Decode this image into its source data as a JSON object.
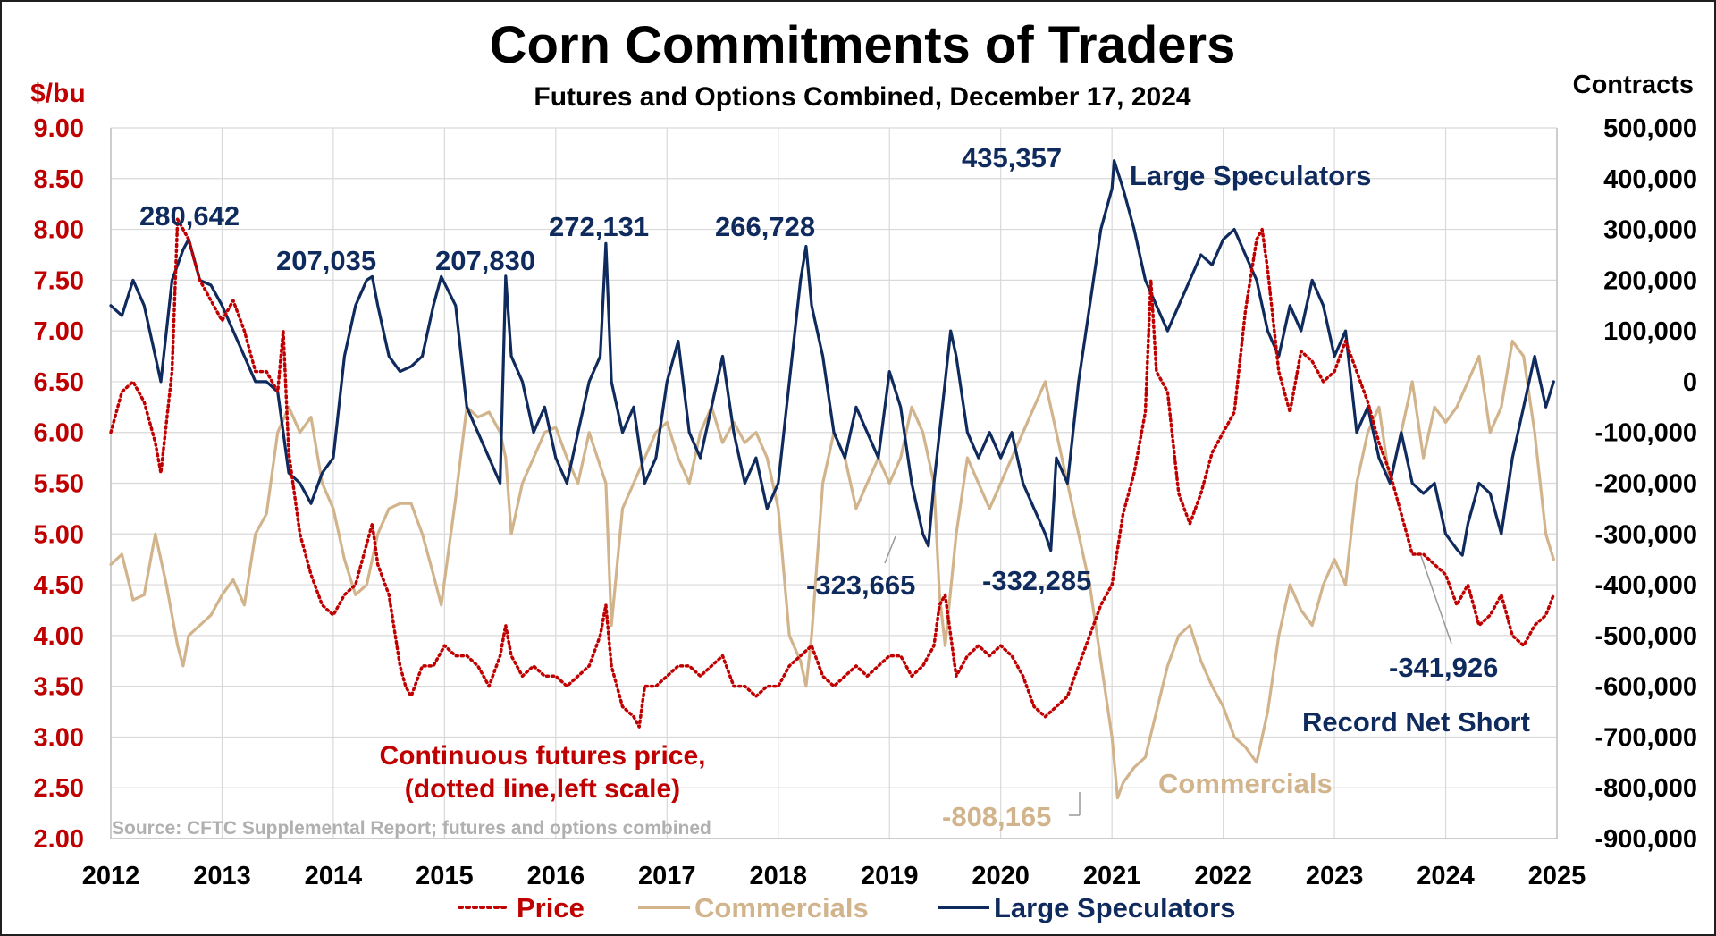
{
  "chart_data": {
    "type": "line",
    "title": "Corn Commitments of Traders",
    "subtitle": "Futures and Options Combined, December 17, 2024",
    "y_left_unit": "$/bu",
    "y_right_unit": "Contracts",
    "ylim_left": [
      2.0,
      9.0
    ],
    "ylim_right": [
      -900000,
      500000
    ],
    "xlim": [
      2012,
      2025
    ],
    "y_left_ticks": [
      "9.00",
      "8.50",
      "8.00",
      "7.50",
      "7.00",
      "6.50",
      "6.00",
      "5.50",
      "5.00",
      "4.50",
      "4.00",
      "3.50",
      "3.00",
      "2.50",
      "2.00"
    ],
    "y_right_ticks": [
      "500,000",
      "400,000",
      "300,000",
      "200,000",
      "100,000",
      "0",
      "-100,000",
      "-200,000",
      "-300,000",
      "-400,000",
      "-500,000",
      "-600,000",
      "-700,000",
      "-800,000",
      "-900,000"
    ],
    "x_ticks": [
      "2012",
      "2013",
      "2014",
      "2015",
      "2016",
      "2017",
      "2018",
      "2019",
      "2020",
      "2021",
      "2022",
      "2023",
      "2024",
      "2025"
    ],
    "grid": true,
    "legend_position": "bottom",
    "colors": {
      "price": "#c00000",
      "commercials": "#d2b48c",
      "speculators": "#0f2a5c"
    },
    "series": [
      {
        "name": "Price",
        "axis": "left",
        "style": "dotted",
        "x": [
          2012.0,
          2012.1,
          2012.2,
          2012.3,
          2012.4,
          2012.45,
          2012.55,
          2012.6,
          2012.7,
          2012.8,
          2012.9,
          2013.0,
          2013.1,
          2013.2,
          2013.3,
          2013.4,
          2013.5,
          2013.55,
          2013.6,
          2013.7,
          2013.8,
          2013.9,
          2014.0,
          2014.1,
          2014.2,
          2014.3,
          2014.35,
          2014.4,
          2014.5,
          2014.6,
          2014.65,
          2014.7,
          2014.8,
          2014.9,
          2015.0,
          2015.1,
          2015.2,
          2015.3,
          2015.4,
          2015.5,
          2015.55,
          2015.6,
          2015.7,
          2015.8,
          2015.9,
          2016.0,
          2016.1,
          2016.2,
          2016.3,
          2016.4,
          2016.45,
          2016.5,
          2016.6,
          2016.7,
          2016.75,
          2016.8,
          2016.9,
          2017.0,
          2017.1,
          2017.2,
          2017.3,
          2017.4,
          2017.5,
          2017.6,
          2017.7,
          2017.8,
          2017.9,
          2018.0,
          2018.1,
          2018.2,
          2018.3,
          2018.4,
          2018.5,
          2018.6,
          2018.7,
          2018.8,
          2018.9,
          2019.0,
          2019.1,
          2019.2,
          2019.3,
          2019.4,
          2019.45,
          2019.5,
          2019.6,
          2019.7,
          2019.8,
          2019.9,
          2020.0,
          2020.1,
          2020.2,
          2020.3,
          2020.4,
          2020.5,
          2020.6,
          2020.7,
          2020.8,
          2020.9,
          2021.0,
          2021.1,
          2021.2,
          2021.3,
          2021.35,
          2021.4,
          2021.5,
          2021.6,
          2021.7,
          2021.8,
          2021.9,
          2022.0,
          2022.1,
          2022.2,
          2022.3,
          2022.35,
          2022.4,
          2022.5,
          2022.6,
          2022.7,
          2022.8,
          2022.9,
          2023.0,
          2023.1,
          2023.2,
          2023.3,
          2023.4,
          2023.5,
          2023.6,
          2023.7,
          2023.8,
          2023.9,
          2024.0,
          2024.1,
          2024.2,
          2024.3,
          2024.4,
          2024.5,
          2024.6,
          2024.7,
          2024.8,
          2024.9,
          2024.97
        ],
        "values": [
          6.0,
          6.4,
          6.5,
          6.3,
          5.9,
          5.6,
          6.6,
          8.1,
          7.9,
          7.5,
          7.3,
          7.1,
          7.3,
          7.0,
          6.6,
          6.6,
          6.4,
          7.0,
          5.8,
          5.0,
          4.6,
          4.3,
          4.2,
          4.4,
          4.5,
          4.9,
          5.1,
          4.7,
          4.4,
          3.7,
          3.5,
          3.4,
          3.7,
          3.7,
          3.9,
          3.8,
          3.8,
          3.7,
          3.5,
          3.8,
          4.1,
          3.8,
          3.6,
          3.7,
          3.6,
          3.6,
          3.5,
          3.6,
          3.7,
          4.0,
          4.3,
          3.7,
          3.3,
          3.2,
          3.1,
          3.5,
          3.5,
          3.6,
          3.7,
          3.7,
          3.6,
          3.7,
          3.8,
          3.5,
          3.5,
          3.4,
          3.5,
          3.5,
          3.7,
          3.8,
          3.9,
          3.6,
          3.5,
          3.6,
          3.7,
          3.6,
          3.7,
          3.8,
          3.8,
          3.6,
          3.7,
          3.9,
          4.3,
          4.4,
          3.6,
          3.8,
          3.9,
          3.8,
          3.9,
          3.8,
          3.6,
          3.3,
          3.2,
          3.3,
          3.4,
          3.7,
          4.0,
          4.3,
          4.5,
          5.2,
          5.6,
          6.2,
          7.5,
          6.6,
          6.4,
          5.4,
          5.1,
          5.4,
          5.8,
          6.0,
          6.2,
          7.2,
          7.9,
          8.0,
          7.6,
          6.6,
          6.2,
          6.8,
          6.7,
          6.5,
          6.6,
          6.9,
          6.6,
          6.3,
          5.9,
          5.6,
          5.2,
          4.8,
          4.8,
          4.7,
          4.6,
          4.3,
          4.5,
          4.1,
          4.2,
          4.4,
          4.0,
          3.9,
          4.1,
          4.2,
          4.4
        ]
      },
      {
        "name": "Commercials",
        "axis": "right",
        "style": "solid",
        "x": [
          2012.0,
          2012.1,
          2012.2,
          2012.3,
          2012.4,
          2012.5,
          2012.6,
          2012.65,
          2012.7,
          2012.8,
          2012.9,
          2013.0,
          2013.1,
          2013.2,
          2013.3,
          2013.4,
          2013.5,
          2013.6,
          2013.7,
          2013.8,
          2013.9,
          2014.0,
          2014.1,
          2014.2,
          2014.3,
          2014.4,
          2014.5,
          2014.6,
          2014.7,
          2014.8,
          2014.9,
          2014.97,
          2015.1,
          2015.2,
          2015.3,
          2015.4,
          2015.5,
          2015.55,
          2015.6,
          2015.7,
          2015.8,
          2015.9,
          2016.0,
          2016.1,
          2016.2,
          2016.3,
          2016.45,
          2016.5,
          2016.6,
          2016.7,
          2016.8,
          2016.9,
          2017.0,
          2017.1,
          2017.2,
          2017.3,
          2017.4,
          2017.5,
          2017.6,
          2017.7,
          2017.8,
          2017.9,
          2018.0,
          2018.1,
          2018.2,
          2018.25,
          2018.3,
          2018.4,
          2018.5,
          2018.6,
          2018.7,
          2018.8,
          2018.9,
          2019.0,
          2019.1,
          2019.2,
          2019.3,
          2019.4,
          2019.45,
          2019.5,
          2019.6,
          2019.7,
          2019.8,
          2019.9,
          2020.0,
          2020.1,
          2020.2,
          2020.3,
          2020.4,
          2020.5,
          2020.6,
          2020.7,
          2020.8,
          2020.9,
          2021.0,
          2021.05,
          2021.1,
          2021.2,
          2021.3,
          2021.4,
          2021.5,
          2021.6,
          2021.7,
          2021.8,
          2021.9,
          2022.0,
          2022.1,
          2022.2,
          2022.3,
          2022.4,
          2022.5,
          2022.6,
          2022.7,
          2022.8,
          2022.9,
          2023.0,
          2023.1,
          2023.2,
          2023.3,
          2023.4,
          2023.5,
          2023.6,
          2023.7,
          2023.8,
          2023.9,
          2024.0,
          2024.1,
          2024.2,
          2024.3,
          2024.4,
          2024.5,
          2024.6,
          2024.7,
          2024.8,
          2024.9,
          2024.97
        ],
        "values": [
          -360000,
          -340000,
          -430000,
          -420000,
          -300000,
          -400000,
          -520000,
          -560000,
          -500000,
          -480000,
          -460000,
          -420000,
          -390000,
          -440000,
          -300000,
          -260000,
          -100000,
          -50000,
          -100000,
          -70000,
          -200000,
          -250000,
          -350000,
          -420000,
          -400000,
          -300000,
          -250000,
          -240000,
          -240000,
          -300000,
          -380000,
          -440000,
          -230000,
          -50000,
          -70000,
          -60000,
          -100000,
          -150000,
          -300000,
          -200000,
          -150000,
          -100000,
          -90000,
          -150000,
          -200000,
          -100000,
          -200000,
          -480000,
          -250000,
          -200000,
          -150000,
          -100000,
          -80000,
          -150000,
          -200000,
          -100000,
          -50000,
          -120000,
          -80000,
          -120000,
          -100000,
          -150000,
          -250000,
          -500000,
          -550000,
          -600000,
          -500000,
          -200000,
          -100000,
          -150000,
          -250000,
          -200000,
          -150000,
          -200000,
          -150000,
          -50000,
          -100000,
          -200000,
          -420000,
          -520000,
          -300000,
          -150000,
          -200000,
          -250000,
          -200000,
          -150000,
          -100000,
          -50000,
          0,
          -100000,
          -200000,
          -300000,
          -400000,
          -550000,
          -700000,
          -820000,
          -790000,
          -760000,
          -740000,
          -650000,
          -560000,
          -500000,
          -480000,
          -550000,
          -600000,
          -640000,
          -700000,
          -720000,
          -750000,
          -650000,
          -500000,
          -400000,
          -450000,
          -480000,
          -400000,
          -350000,
          -400000,
          -200000,
          -100000,
          -50000,
          -200000,
          -100000,
          0,
          -150000,
          -50000,
          -80000,
          -50000,
          0,
          50000,
          -100000,
          -50000,
          80000,
          50000,
          -100000,
          -300000,
          -350000
        ]
      },
      {
        "name": "Large Speculators",
        "axis": "right",
        "style": "solid",
        "x": [
          2012.0,
          2012.1,
          2012.2,
          2012.3,
          2012.4,
          2012.45,
          2012.55,
          2012.65,
          2012.7,
          2012.8,
          2012.9,
          2013.0,
          2013.1,
          2013.2,
          2013.3,
          2013.4,
          2013.5,
          2013.6,
          2013.7,
          2013.8,
          2013.9,
          2014.0,
          2014.1,
          2014.2,
          2014.3,
          2014.35,
          2014.4,
          2014.5,
          2014.6,
          2014.7,
          2014.8,
          2014.9,
          2014.97,
          2015.1,
          2015.2,
          2015.3,
          2015.4,
          2015.5,
          2015.55,
          2015.6,
          2015.7,
          2015.8,
          2015.9,
          2016.0,
          2016.1,
          2016.2,
          2016.3,
          2016.4,
          2016.45,
          2016.5,
          2016.6,
          2016.7,
          2016.8,
          2016.9,
          2017.0,
          2017.1,
          2017.2,
          2017.3,
          2017.4,
          2017.5,
          2017.6,
          2017.7,
          2017.8,
          2017.9,
          2018.0,
          2018.1,
          2018.2,
          2018.25,
          2018.3,
          2018.4,
          2018.5,
          2018.6,
          2018.7,
          2018.8,
          2018.9,
          2019.0,
          2019.1,
          2019.2,
          2019.3,
          2019.35,
          2019.4,
          2019.5,
          2019.55,
          2019.6,
          2019.7,
          2019.8,
          2019.9,
          2020.0,
          2020.1,
          2020.2,
          2020.3,
          2020.4,
          2020.45,
          2020.5,
          2020.6,
          2020.7,
          2020.8,
          2020.9,
          2021.0,
          2021.02,
          2021.1,
          2021.2,
          2021.3,
          2021.4,
          2021.5,
          2021.6,
          2021.7,
          2021.8,
          2021.9,
          2022.0,
          2022.1,
          2022.2,
          2022.3,
          2022.4,
          2022.5,
          2022.6,
          2022.7,
          2022.8,
          2022.9,
          2023.0,
          2023.1,
          2023.2,
          2023.3,
          2023.4,
          2023.5,
          2023.6,
          2023.7,
          2023.8,
          2023.9,
          2024.0,
          2024.1,
          2024.15,
          2024.2,
          2024.3,
          2024.4,
          2024.5,
          2024.6,
          2024.7,
          2024.8,
          2024.9,
          2024.97
        ],
        "values": [
          150000,
          130000,
          200000,
          150000,
          50000,
          0,
          200000,
          260000,
          280642,
          200000,
          190000,
          150000,
          100000,
          50000,
          0,
          0,
          -20000,
          -180000,
          -200000,
          -240000,
          -180000,
          -150000,
          50000,
          150000,
          200000,
          207035,
          150000,
          50000,
          20000,
          30000,
          50000,
          150000,
          207035,
          150000,
          -50000,
          -100000,
          -150000,
          -200000,
          207830,
          50000,
          0,
          -100000,
          -50000,
          -150000,
          -200000,
          -100000,
          0,
          50000,
          272131,
          0,
          -100000,
          -50000,
          -200000,
          -150000,
          0,
          80000,
          -100000,
          -150000,
          -50000,
          50000,
          -100000,
          -200000,
          -150000,
          -250000,
          -200000,
          0,
          200000,
          266728,
          150000,
          50000,
          -100000,
          -150000,
          -50000,
          -100000,
          -150000,
          20000,
          -50000,
          -200000,
          -300000,
          -323665,
          -200000,
          0,
          100000,
          50000,
          -100000,
          -150000,
          -100000,
          -150000,
          -100000,
          -200000,
          -250000,
          -300000,
          -332285,
          -150000,
          -200000,
          0,
          150000,
          300000,
          380000,
          435357,
          380000,
          300000,
          200000,
          150000,
          100000,
          150000,
          200000,
          250000,
          230000,
          280000,
          300000,
          250000,
          200000,
          100000,
          50000,
          150000,
          100000,
          200000,
          150000,
          50000,
          100000,
          -100000,
          -50000,
          -150000,
          -200000,
          -100000,
          -200000,
          -220000,
          -200000,
          -300000,
          -330000,
          -341926,
          -280000,
          -200000,
          -220000,
          -300000,
          -150000,
          -50000,
          50000,
          -50000,
          0
        ]
      }
    ],
    "annotations": {
      "spec_2012": "280,642",
      "spec_2014": "207,035",
      "spec_2015": "207,830",
      "spec_2016": "272,131",
      "spec_2018": "266,728",
      "spec_2021": "435,357",
      "spec_label": "Large Speculators",
      "spec_low_2019": "-323,665",
      "spec_low_2020": "-332,285",
      "spec_low_2024": "-341,926",
      "record_label": "Record Net Short",
      "comm_low": "-808,165",
      "comm_label": "Commercials",
      "price_label_1": "Continuous futures price,",
      "price_label_2": "(dotted line,left scale)",
      "source": "Source: CFTC Supplemental Report; futures and options combined"
    },
    "legend": [
      "Price",
      "Commercials",
      "Large Speculators"
    ]
  }
}
